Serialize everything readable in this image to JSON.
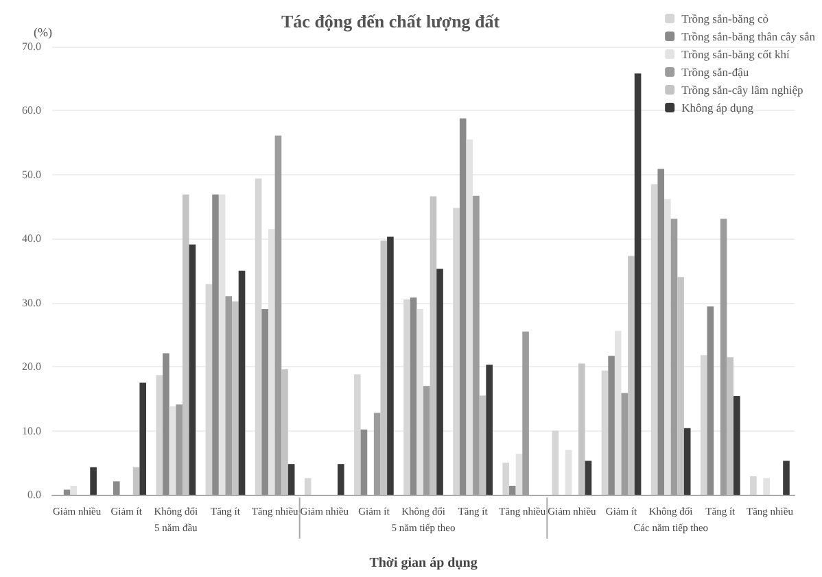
{
  "chart_data": {
    "type": "bar",
    "title": "Tác động đến chất lượng đất",
    "xlabel": "Thời gian áp dụng",
    "ylabel": "(%)",
    "categories": [
      "Giảm nhiều",
      "Giảm ít",
      "Không đổi",
      "Tăng ít",
      "Tăng nhiều",
      "Giảm nhiều",
      "Giảm ít",
      "Không đổi",
      "Tăng ít",
      "Tăng nhiều",
      "Giảm nhiều",
      "Giảm ít",
      "Không đổi",
      "Tăng ít",
      "Tăng nhiều"
    ],
    "series": [
      {
        "name": "Trồng sắn-băng cỏ",
        "color": "#d6d6d6",
        "values": [
          0,
          0,
          18.7,
          32.9,
          49.4,
          2.6,
          18.8,
          30.5,
          44.8,
          5.0,
          10.0,
          19.4,
          48.5,
          21.8,
          2.9
        ]
      },
      {
        "name": "Trồng sắn-băng thân cây sắn",
        "color": "#8a8a8a",
        "values": [
          0.8,
          2.1,
          22.1,
          46.9,
          29.0,
          0,
          10.2,
          30.8,
          58.8,
          1.4,
          0,
          21.7,
          50.9,
          29.4,
          0
        ]
      },
      {
        "name": "Trồng sắn-băng cốt khí",
        "color": "#e3e3e3",
        "values": [
          1.4,
          0,
          13.8,
          46.9,
          41.5,
          0,
          0,
          29.0,
          55.5,
          6.4,
          7.0,
          25.6,
          46.2,
          0,
          2.6
        ]
      },
      {
        "name": "Trồng sắn-đậu",
        "color": "#9c9c9c",
        "values": [
          0,
          0,
          14.1,
          31.0,
          56.1,
          0,
          12.8,
          17.0,
          46.7,
          25.5,
          0,
          15.9,
          43.1,
          43.1,
          0
        ]
      },
      {
        "name": "Trồng sắn-cây lâm nghiệp",
        "color": "#c4c4c4",
        "values": [
          0,
          4.3,
          46.9,
          30.2,
          19.6,
          0,
          39.7,
          46.6,
          15.5,
          0,
          20.5,
          37.3,
          34.0,
          21.5,
          0
        ]
      },
      {
        "name": "Không áp dụng",
        "color": "#3a3a3a",
        "values": [
          4.3,
          17.5,
          39.1,
          35.0,
          4.8,
          4.8,
          40.3,
          35.3,
          20.3,
          0,
          5.3,
          65.8,
          10.4,
          15.4,
          5.3
        ]
      }
    ],
    "annotations": [
      "5 năm đầu",
      "5 năm tiếp theo",
      "Các năm tiếp theo"
    ],
    "ylim": [
      0,
      70
    ],
    "yticks": [
      {
        "value": 0,
        "label": "0.0"
      },
      {
        "value": 10,
        "label": "10.0"
      },
      {
        "value": 20,
        "label": "20.0"
      },
      {
        "value": 30,
        "label": "30.0"
      },
      {
        "value": 40,
        "label": "40.0"
      },
      {
        "value": 50,
        "label": "50.0"
      },
      {
        "value": 60,
        "label": "60.0"
      },
      {
        "value": 70,
        "label": "70.0"
      }
    ],
    "grid": "y",
    "legend": "top right"
  }
}
